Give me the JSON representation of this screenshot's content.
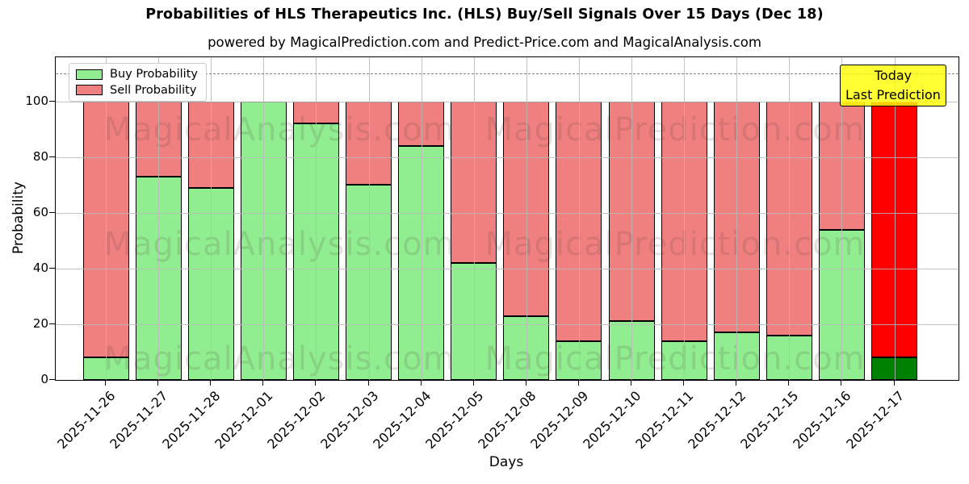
{
  "title": "Probabilities of HLS Therapeutics Inc. (HLS) Buy/Sell Signals Over 15 Days (Dec 18)",
  "subtitle": "powered by MagicalPrediction.com and Predict-Price.com and MagicalAnalysis.com",
  "axis": {
    "xlabel": "Days",
    "ylabel": "Probability"
  },
  "legend": {
    "items": [
      {
        "label": "Buy Probability",
        "color": "#90ee90"
      },
      {
        "label": "Sell Probability",
        "color": "#f08080"
      }
    ]
  },
  "annotation": {
    "line1": "Today",
    "line2": "Last Prediction",
    "bg_color": "#ffff00"
  },
  "watermarks": {
    "left": "MagicalAnalysis.com",
    "right": "MagicalPrediction.com",
    "rows": 3
  },
  "chart_data": {
    "type": "bar",
    "stacked": true,
    "title": "Probabilities of HLS Therapeutics Inc. (HLS) Buy/Sell Signals Over 15 Days (Dec 18)",
    "xlabel": "Days",
    "ylabel": "Probability",
    "ylim": [
      0,
      115.8
    ],
    "yticks": [
      0,
      20,
      40,
      60,
      80,
      100
    ],
    "grid": true,
    "legend_position": "upper left",
    "dashed_line_y": 110,
    "categories": [
      "2025-11-26",
      "2025-11-27",
      "2025-11-28",
      "2025-12-01",
      "2025-12-02",
      "2025-12-03",
      "2025-12-04",
      "2025-12-05",
      "2025-12-08",
      "2025-12-09",
      "2025-12-10",
      "2025-12-11",
      "2025-12-12",
      "2025-12-15",
      "2025-12-16",
      "2025-12-17"
    ],
    "series": [
      {
        "name": "Buy Probability",
        "color": "#90ee90",
        "values": [
          8,
          73,
          69,
          100,
          92,
          70,
          84,
          42,
          23,
          14,
          21,
          14,
          17,
          16,
          54,
          8
        ]
      },
      {
        "name": "Sell Probability",
        "color": "#f08080",
        "values": [
          92,
          27,
          31,
          0,
          8,
          30,
          16,
          58,
          77,
          86,
          79,
          86,
          83,
          84,
          46,
          92
        ]
      }
    ],
    "last_bar_highlight": {
      "buy_color": "#008000",
      "sell_color": "#ff0000"
    }
  }
}
